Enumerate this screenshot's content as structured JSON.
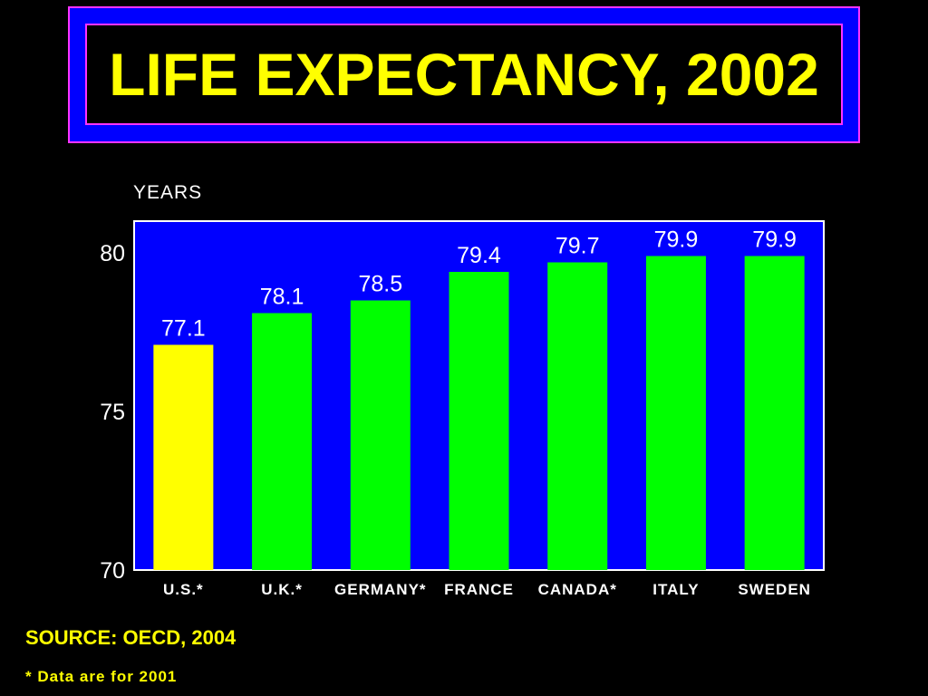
{
  "chart_data": {
    "type": "bar",
    "title": "LIFE EXPECTANCY, 2002",
    "ylabel": "YEARS",
    "categories": [
      "U.S.*",
      "U.K.*",
      "GERMANY*",
      "FRANCE",
      "CANADA*",
      "ITALY",
      "SWEDEN"
    ],
    "values": [
      77.1,
      78.1,
      78.5,
      79.4,
      79.7,
      79.9,
      79.9
    ],
    "value_labels": [
      "77.1",
      "78.1",
      "78.5",
      "79.4",
      "79.7",
      "79.9",
      "79.9"
    ],
    "yticks": [
      70,
      75,
      80
    ],
    "ylim": [
      70,
      81
    ],
    "grid": false,
    "bar_colors": [
      "#ffff00",
      "#00ff00",
      "#00ff00",
      "#00ff00",
      "#00ff00",
      "#00ff00",
      "#00ff00"
    ],
    "plot_background": "#0000ff"
  },
  "footer": {
    "source": "SOURCE: OECD, 2004",
    "note": "* Data are for 2001"
  },
  "colors": {
    "background": "#000000",
    "title_text": "#ffff00",
    "title_frame": "#0000ff",
    "title_border": "#ff33ff"
  }
}
